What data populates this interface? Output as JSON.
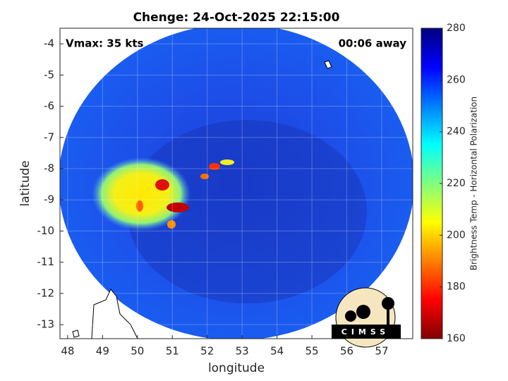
{
  "chart_data": {
    "type": "heatmap",
    "title": "Chenge: 24-Oct-2025 22:15:00",
    "annotations": [
      "Vmax: 35 kts",
      "00:06 away"
    ],
    "xlabel": "longitude",
    "ylabel": "latitude",
    "xlim": [
      47.78,
      57.89
    ],
    "ylim": [
      -13.45,
      -3.5
    ],
    "xticks": [
      48,
      49,
      50,
      51,
      52,
      53,
      54,
      55,
      56,
      57
    ],
    "yticks": [
      -4,
      -5,
      -6,
      -7,
      -8,
      -9,
      -10,
      -11,
      -12,
      -13
    ],
    "grid": true,
    "colorbar": {
      "label": "Brightness Temp - Horizontal Polarization",
      "lim": [
        160,
        280
      ],
      "ticks": [
        160,
        180,
        200,
        220,
        240,
        260,
        280
      ],
      "colormap": "jet_r"
    },
    "logo": "CIMSS"
  }
}
